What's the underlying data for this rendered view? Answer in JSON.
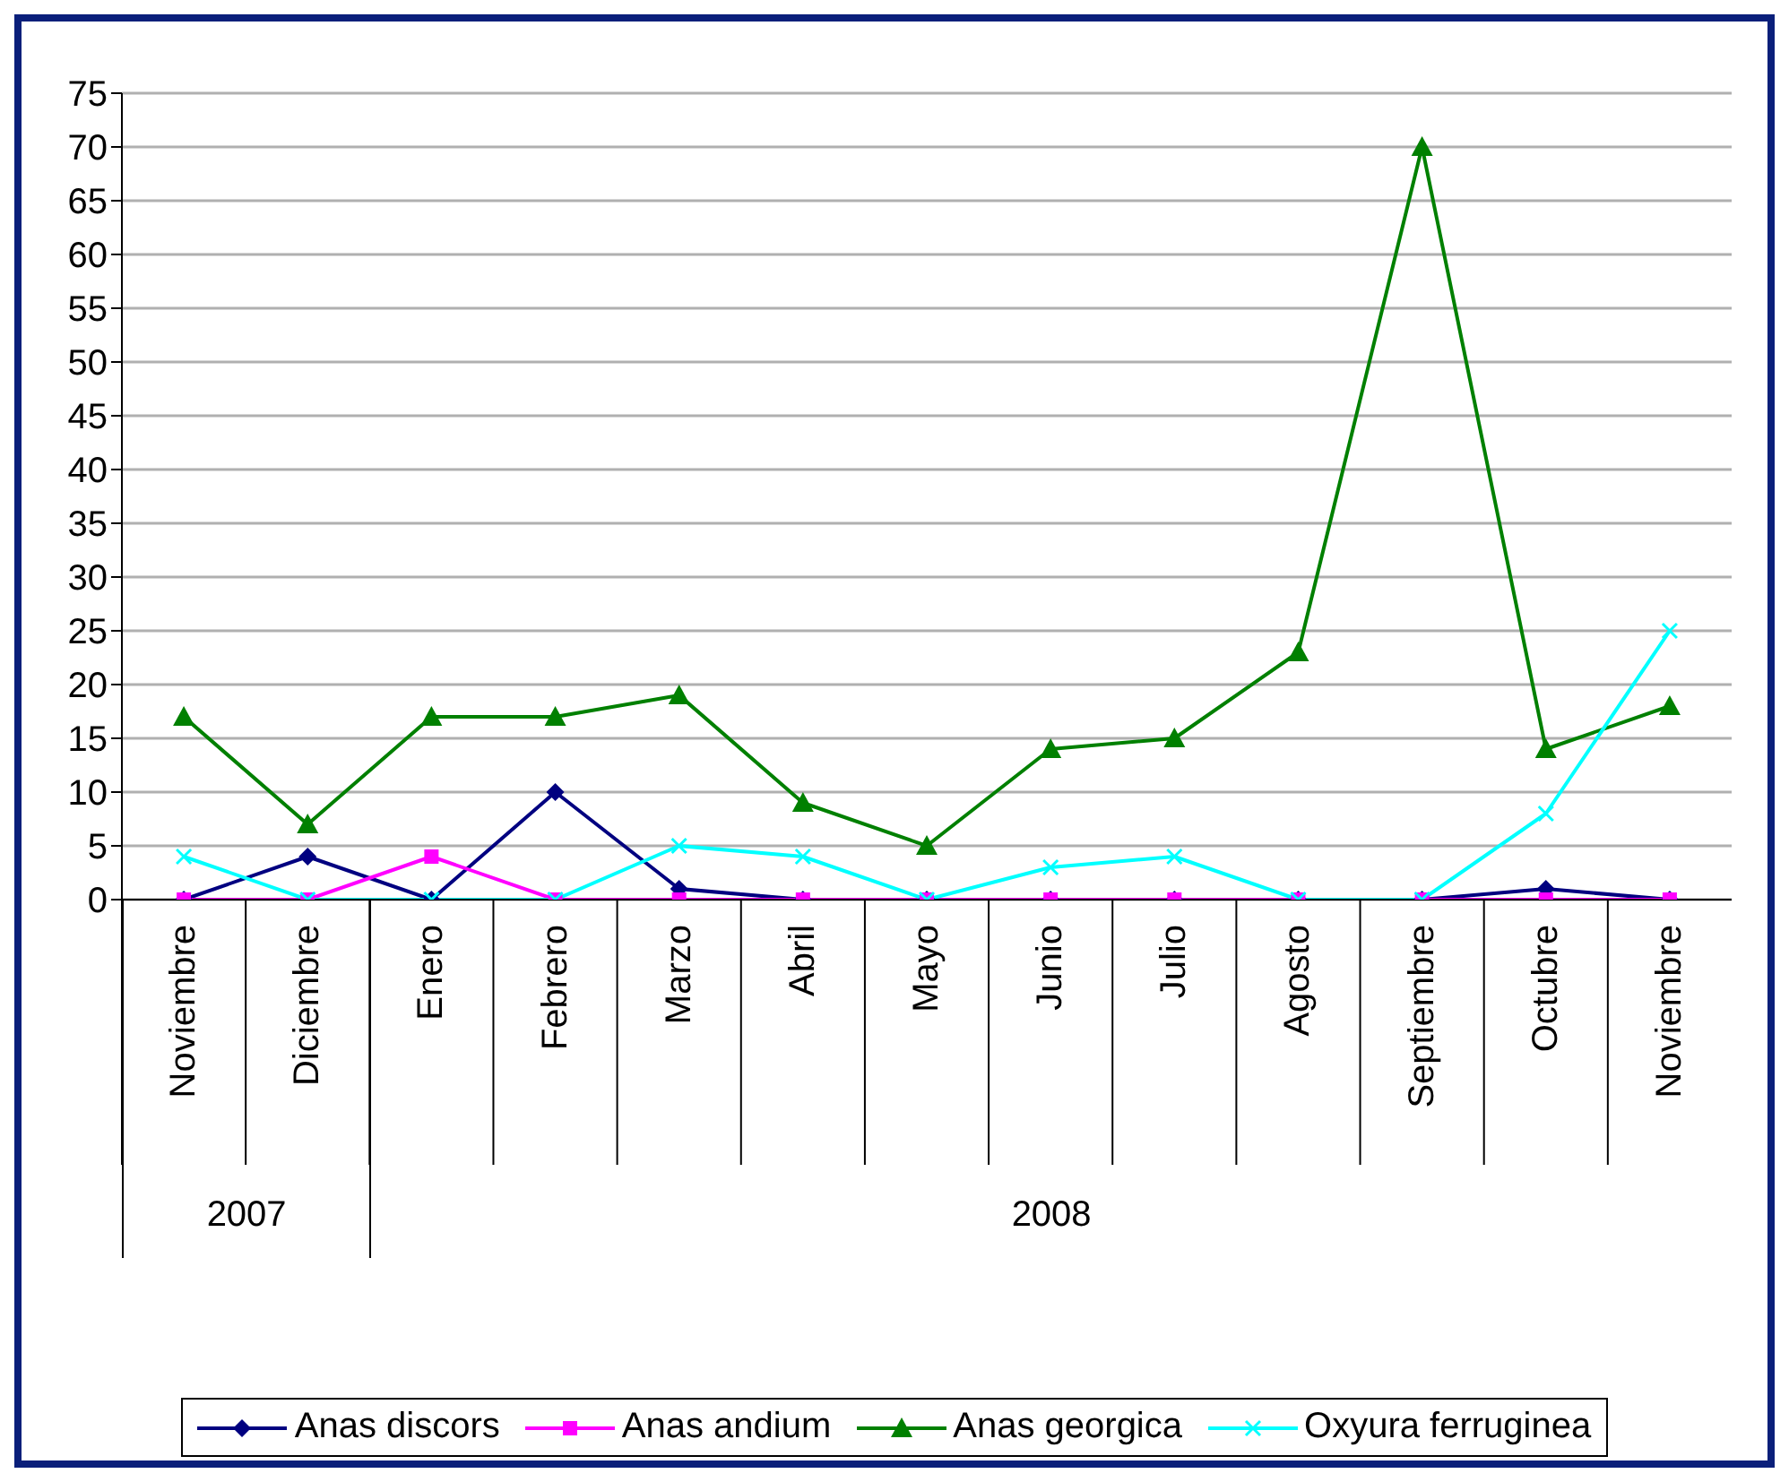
{
  "chart_data": {
    "type": "line",
    "categories": [
      "Noviembre",
      "Diciembre",
      "Enero",
      "Febrero",
      "Marzo",
      "Abril",
      "Mayo",
      "Junio",
      "Julio",
      "Agosto",
      "Septiembre",
      "Octubre",
      "Noviembre"
    ],
    "series": [
      {
        "name": "Anas discors",
        "color": "#000080",
        "marker": "diamond",
        "values": [
          0,
          4,
          0,
          10,
          1,
          0,
          0,
          0,
          0,
          0,
          0,
          1,
          0
        ]
      },
      {
        "name": "Anas andium",
        "color": "#ff00ff",
        "marker": "square",
        "values": [
          0,
          0,
          4,
          0,
          0,
          0,
          0,
          0,
          0,
          0,
          0,
          0,
          0
        ]
      },
      {
        "name": "Anas georgica",
        "color": "#008000",
        "marker": "triangle",
        "values": [
          17,
          7,
          17,
          17,
          19,
          9,
          5,
          14,
          15,
          23,
          70,
          14,
          18
        ]
      },
      {
        "name": "Oxyura ferruginea",
        "color": "#00ffff",
        "marker": "cross",
        "values": [
          4,
          0,
          0,
          0,
          5,
          4,
          0,
          3,
          4,
          0,
          0,
          8,
          25
        ]
      }
    ],
    "ylim": [
      0,
      75
    ],
    "yticks": [
      0,
      5,
      10,
      15,
      20,
      25,
      30,
      35,
      40,
      45,
      50,
      55,
      60,
      65,
      70,
      75
    ],
    "grid": "y",
    "legend": "bottom",
    "line_style": "solid",
    "annotations": [
      "2007",
      "2008"
    ]
  }
}
